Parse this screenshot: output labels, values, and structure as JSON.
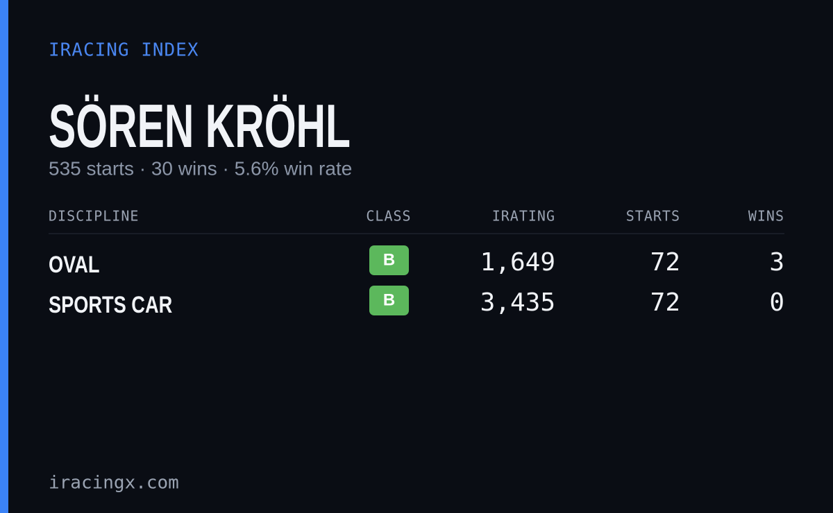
{
  "header": {
    "label": "IRACING INDEX",
    "name": "SÖREN KRÖHL",
    "summary": "535 starts · 30 wins · 5.6% win rate"
  },
  "table": {
    "columns": [
      "DISCIPLINE",
      "CLASS",
      "IRATING",
      "STARTS",
      "WINS"
    ],
    "rows": [
      [
        "OVAL",
        "B",
        "1,649",
        "72",
        "3"
      ],
      [
        "SPORTS CAR",
        "B",
        "3,435",
        "72",
        "0"
      ]
    ]
  },
  "footer": {
    "site": "iracingx.com"
  }
}
